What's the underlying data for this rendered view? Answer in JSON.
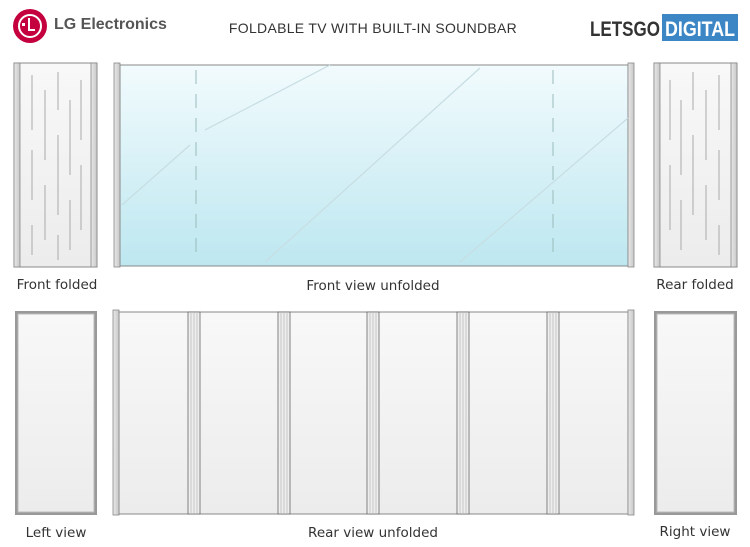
{
  "header": {
    "brand_logo_text": "LG Electronics",
    "title": "FOLDABLE TV WITH BUILT-IN SOUNDBAR",
    "watermark_logo": {
      "part1": "LETSGO",
      "part2": "DIGITAL"
    }
  },
  "views": {
    "front_folded": "Front folded",
    "front_unfolded": "Front view unfolded",
    "rear_folded": "Rear folded",
    "left_view": "Left view",
    "rear_unfolded": "Rear view unfolded",
    "right_view": "Right view"
  },
  "colors": {
    "lg_red": "#c4003f",
    "digital_blue": "#3d86c6",
    "screen_glass": "#c4eaf2"
  }
}
